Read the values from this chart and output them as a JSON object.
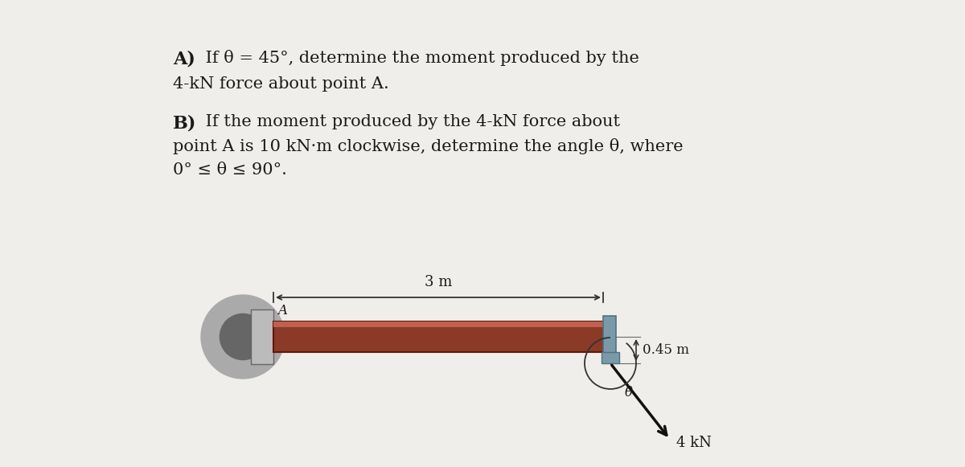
{
  "bg_color": "#f0eeea",
  "text_color": "#1a1a1a",
  "part_A_bold": "A)",
  "part_A_text": " If θ = 45°, determine the moment produced by the",
  "part_A_line2": "4-kN force about point A.",
  "part_B_bold": "B)",
  "part_B_text": " If the moment produced by the 4-kN force about",
  "part_B_line2": "point A is 10 kN·m clockwise, determine the angle θ, where",
  "part_B_line3": "0° ≤ θ ≤ 90°.",
  "dim_label": "3 m",
  "dist_label": "0.45 m",
  "force_label": "4 kN",
  "angle_label": "θ",
  "point_label": "A",
  "beam_color": "#8B3A28",
  "beam_top_color": "#A04535",
  "beam_dark": "#5C1A08",
  "wall_body_color": "#aaaaaa",
  "wall_rim_color": "#888888",
  "wall_dark": "#666666",
  "cap_color": "#7A9AAA",
  "cap_dark": "#557080",
  "dim_color": "#333333",
  "force_color": "#111111",
  "white": "#ffffff"
}
